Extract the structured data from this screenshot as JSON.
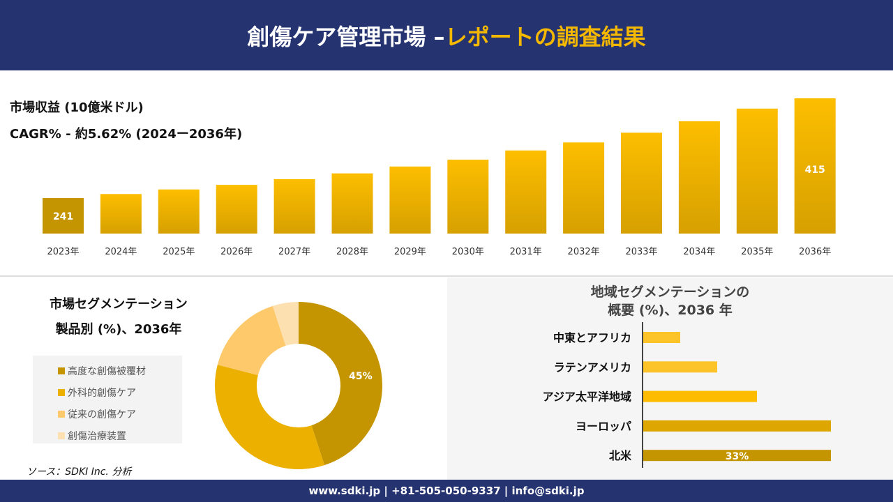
{
  "header": {
    "title_main": "創傷ケア管理市場 –",
    "title_accent": "レポートの調査結果"
  },
  "revenue": {
    "label": "市場収益 (10億米ドル)",
    "cagr": "CAGR% - 約5.62% (2024ー2036年)"
  },
  "chart_data": [
    {
      "type": "bar",
      "categories": [
        "2023年",
        "2024年",
        "2025年",
        "2026年",
        "2027年",
        "2028年",
        "2029年",
        "2030年",
        "2031年",
        "2032年",
        "2033年",
        "2034年",
        "2035年",
        "2036年"
      ],
      "values": [
        241,
        248,
        256,
        264,
        274,
        284,
        296,
        308,
        324,
        338,
        355,
        375,
        397,
        415
      ],
      "data_labels": {
        "0": "241",
        "13": "415"
      },
      "ylim": [
        179,
        415
      ]
    },
    {
      "type": "pie",
      "title": "市場セグメンテーション 製品別 (%)、2036年",
      "title_line1": "市場セグメンテーション",
      "title_line2": "製品別 (%)、2036年",
      "categories": [
        "高度な創傷被覆材",
        "外科的創傷ケア",
        "従来の創傷ケア",
        "創傷治療装置"
      ],
      "values": [
        45,
        34,
        16,
        5
      ],
      "colors": [
        "#c49500",
        "#ebb000",
        "#fdc96a",
        "#fde0b0"
      ],
      "data_labels": {
        "0": "45%"
      },
      "hole": true
    },
    {
      "type": "bar",
      "orientation": "horizontal",
      "title_line1": "地域セグメンテーションの",
      "title_line2": "概要 (%)、2036 年",
      "categories": [
        "中東とアフリカ",
        "ラテンアメリカ",
        "アジア太平洋地域",
        "ヨーロッパ",
        "北米"
      ],
      "values": [
        6.5,
        13,
        20,
        33,
        33
      ],
      "colors": [
        "#fdc42a",
        "#fdc42a",
        "#fdbc00",
        "#dea600",
        "#c49500"
      ],
      "data_labels": {
        "4": "33%"
      },
      "xlim": [
        0,
        33
      ]
    }
  ],
  "source": "ソース：SDKI Inc. 分析",
  "footer": "www.sdki.jp | +81-505-050-9337 | info@sdki.jp"
}
